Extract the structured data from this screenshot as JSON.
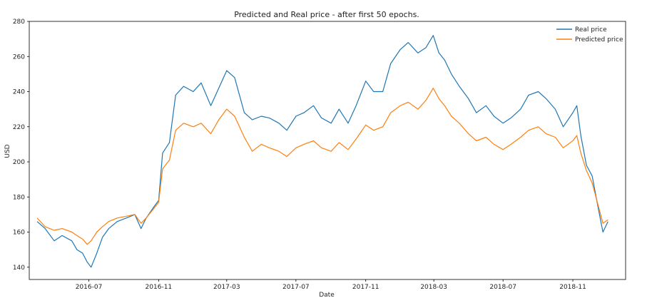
{
  "chart_data": {
    "type": "line",
    "title": "Predicted and Real price - after first 50 epochs.",
    "xlabel": "Date",
    "ylabel": "USD",
    "ylim": [
      133,
      280
    ],
    "xlim": [
      "2016-03-18",
      "2019-02-02"
    ],
    "y_ticks": [
      140,
      160,
      180,
      200,
      220,
      240,
      260,
      280
    ],
    "x_ticks": [
      "2016-07",
      "2016-11",
      "2017-03",
      "2017-07",
      "2017-11",
      "2018-03",
      "2018-07",
      "2018-11"
    ],
    "grid": false,
    "legend_position": "top-right",
    "series": [
      {
        "name": "Real price",
        "color": "#1f77b4",
        "points": [
          [
            "2016-04-01",
            166
          ],
          [
            "2016-04-15",
            162
          ],
          [
            "2016-05-01",
            155
          ],
          [
            "2016-05-15",
            158
          ],
          [
            "2016-06-01",
            155
          ],
          [
            "2016-06-10",
            150
          ],
          [
            "2016-06-20",
            148
          ],
          [
            "2016-06-28",
            143
          ],
          [
            "2016-07-05",
            140
          ],
          [
            "2016-07-15",
            148
          ],
          [
            "2016-07-25",
            157
          ],
          [
            "2016-08-05",
            162
          ],
          [
            "2016-08-20",
            166
          ],
          [
            "2016-09-05",
            168
          ],
          [
            "2016-09-20",
            170
          ],
          [
            "2016-10-01",
            162
          ],
          [
            "2016-10-10",
            168
          ],
          [
            "2016-10-25",
            175
          ],
          [
            "2016-11-01",
            178
          ],
          [
            "2016-11-08",
            205
          ],
          [
            "2016-11-20",
            211
          ],
          [
            "2016-12-01",
            238
          ],
          [
            "2016-12-15",
            243
          ],
          [
            "2017-01-01",
            240
          ],
          [
            "2017-01-15",
            245
          ],
          [
            "2017-02-01",
            232
          ],
          [
            "2017-02-15",
            242
          ],
          [
            "2017-03-01",
            252
          ],
          [
            "2017-03-15",
            248
          ],
          [
            "2017-04-01",
            228
          ],
          [
            "2017-04-15",
            224
          ],
          [
            "2017-05-01",
            226
          ],
          [
            "2017-05-15",
            225
          ],
          [
            "2017-06-01",
            222
          ],
          [
            "2017-06-15",
            218
          ],
          [
            "2017-07-01",
            226
          ],
          [
            "2017-07-15",
            228
          ],
          [
            "2017-08-01",
            232
          ],
          [
            "2017-08-15",
            225
          ],
          [
            "2017-09-01",
            222
          ],
          [
            "2017-09-15",
            230
          ],
          [
            "2017-10-01",
            222
          ],
          [
            "2017-10-15",
            232
          ],
          [
            "2017-11-01",
            246
          ],
          [
            "2017-11-15",
            240
          ],
          [
            "2017-12-01",
            240
          ],
          [
            "2017-12-15",
            256
          ],
          [
            "2018-01-01",
            264
          ],
          [
            "2018-01-15",
            268
          ],
          [
            "2018-02-01",
            262
          ],
          [
            "2018-02-15",
            265
          ],
          [
            "2018-02-28",
            272
          ],
          [
            "2018-03-10",
            262
          ],
          [
            "2018-03-20",
            258
          ],
          [
            "2018-04-01",
            250
          ],
          [
            "2018-04-15",
            243
          ],
          [
            "2018-05-01",
            236
          ],
          [
            "2018-05-15",
            228
          ],
          [
            "2018-06-01",
            232
          ],
          [
            "2018-06-15",
            226
          ],
          [
            "2018-07-01",
            222
          ],
          [
            "2018-07-15",
            225
          ],
          [
            "2018-08-01",
            230
          ],
          [
            "2018-08-15",
            238
          ],
          [
            "2018-09-01",
            240
          ],
          [
            "2018-09-15",
            236
          ],
          [
            "2018-10-01",
            230
          ],
          [
            "2018-10-15",
            220
          ],
          [
            "2018-11-01",
            228
          ],
          [
            "2018-11-08",
            232
          ],
          [
            "2018-11-15",
            215
          ],
          [
            "2018-11-25",
            198
          ],
          [
            "2018-12-05",
            192
          ],
          [
            "2018-12-15",
            175
          ],
          [
            "2018-12-24",
            160
          ],
          [
            "2019-01-02",
            166
          ]
        ]
      },
      {
        "name": "Predicted price",
        "color": "#ff7f0e",
        "points": [
          [
            "2016-04-01",
            168
          ],
          [
            "2016-04-15",
            163
          ],
          [
            "2016-05-01",
            161
          ],
          [
            "2016-05-15",
            162
          ],
          [
            "2016-06-01",
            160
          ],
          [
            "2016-06-10",
            158
          ],
          [
            "2016-06-20",
            156
          ],
          [
            "2016-06-28",
            153
          ],
          [
            "2016-07-05",
            155
          ],
          [
            "2016-07-15",
            160
          ],
          [
            "2016-07-25",
            163
          ],
          [
            "2016-08-05",
            166
          ],
          [
            "2016-08-20",
            168
          ],
          [
            "2016-09-05",
            169
          ],
          [
            "2016-09-20",
            170
          ],
          [
            "2016-10-01",
            165
          ],
          [
            "2016-10-10",
            168
          ],
          [
            "2016-10-25",
            174
          ],
          [
            "2016-11-01",
            177
          ],
          [
            "2016-11-08",
            196
          ],
          [
            "2016-11-20",
            201
          ],
          [
            "2016-12-01",
            218
          ],
          [
            "2016-12-15",
            222
          ],
          [
            "2017-01-01",
            220
          ],
          [
            "2017-01-15",
            222
          ],
          [
            "2017-02-01",
            216
          ],
          [
            "2017-02-15",
            224
          ],
          [
            "2017-03-01",
            230
          ],
          [
            "2017-03-15",
            226
          ],
          [
            "2017-04-01",
            214
          ],
          [
            "2017-04-15",
            206
          ],
          [
            "2017-05-01",
            210
          ],
          [
            "2017-05-15",
            208
          ],
          [
            "2017-06-01",
            206
          ],
          [
            "2017-06-15",
            203
          ],
          [
            "2017-07-01",
            208
          ],
          [
            "2017-07-15",
            210
          ],
          [
            "2017-08-01",
            212
          ],
          [
            "2017-08-15",
            208
          ],
          [
            "2017-09-01",
            206
          ],
          [
            "2017-09-15",
            211
          ],
          [
            "2017-10-01",
            207
          ],
          [
            "2017-10-15",
            213
          ],
          [
            "2017-11-01",
            221
          ],
          [
            "2017-11-15",
            218
          ],
          [
            "2017-12-01",
            220
          ],
          [
            "2017-12-15",
            228
          ],
          [
            "2018-01-01",
            232
          ],
          [
            "2018-01-15",
            234
          ],
          [
            "2018-02-01",
            230
          ],
          [
            "2018-02-15",
            235
          ],
          [
            "2018-02-28",
            242
          ],
          [
            "2018-03-10",
            236
          ],
          [
            "2018-03-20",
            232
          ],
          [
            "2018-04-01",
            226
          ],
          [
            "2018-04-15",
            222
          ],
          [
            "2018-05-01",
            216
          ],
          [
            "2018-05-15",
            212
          ],
          [
            "2018-06-01",
            214
          ],
          [
            "2018-06-15",
            210
          ],
          [
            "2018-07-01",
            207
          ],
          [
            "2018-07-15",
            210
          ],
          [
            "2018-08-01",
            214
          ],
          [
            "2018-08-15",
            218
          ],
          [
            "2018-09-01",
            220
          ],
          [
            "2018-09-15",
            216
          ],
          [
            "2018-10-01",
            214
          ],
          [
            "2018-10-15",
            208
          ],
          [
            "2018-11-01",
            212
          ],
          [
            "2018-11-08",
            215
          ],
          [
            "2018-11-15",
            205
          ],
          [
            "2018-11-25",
            195
          ],
          [
            "2018-12-05",
            188
          ],
          [
            "2018-12-15",
            176
          ],
          [
            "2018-12-24",
            165
          ],
          [
            "2019-01-02",
            167
          ]
        ]
      }
    ]
  }
}
